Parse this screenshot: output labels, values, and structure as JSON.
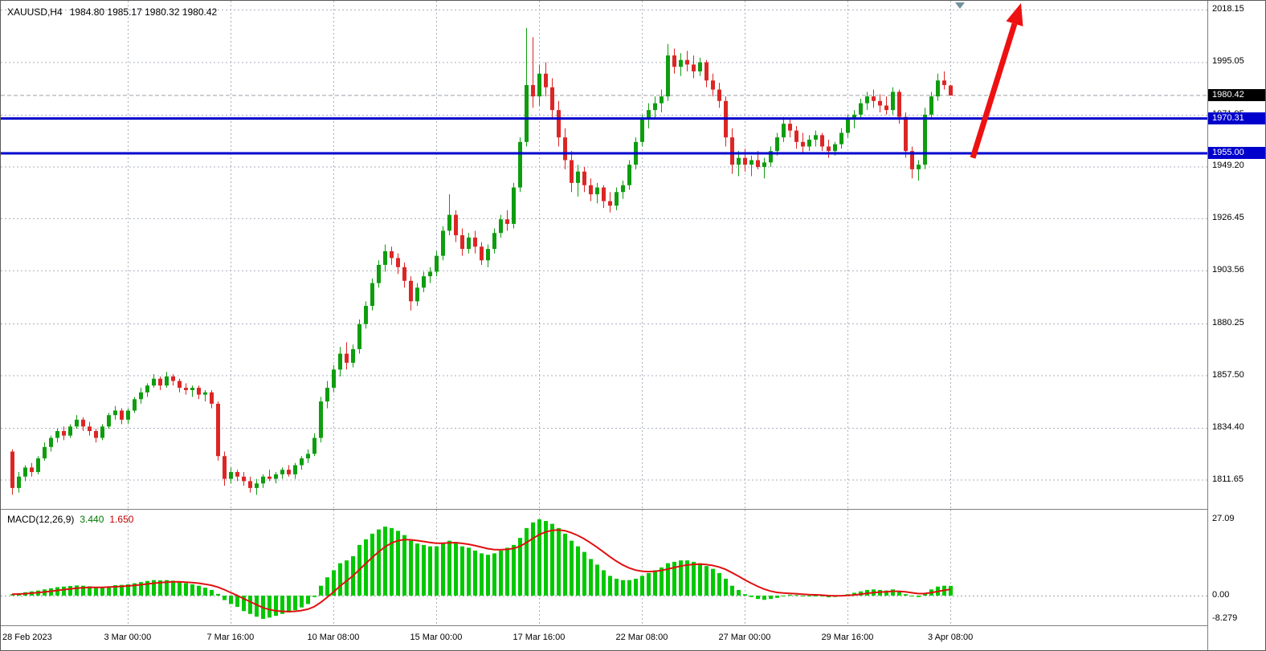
{
  "window": {
    "title": {
      "symbol": "XAUUSD,H4",
      "ohlc": "1984.80 1985.17 1980.32 1980.42"
    }
  },
  "colors": {
    "background": "#ffffff",
    "grid": "#a9afbc",
    "bull": "#0f9d0f",
    "bear": "#dc2626",
    "bid_line": "#9aa0a8",
    "level_line": "#0000cc",
    "current_price_bg": "#000000",
    "level_label_bg": "#0000cc",
    "macd_histogram": "#00c800",
    "macd_signal": "#e01010",
    "arrow": "#ee1111",
    "shift_marker": "#72929e",
    "axis_text": "#000000"
  },
  "chart_data": {
    "type": "candlestick",
    "symbol": "XAUUSD",
    "timeframe": "H4",
    "current_ohlc": {
      "open": "1984.80",
      "high": "1985.17",
      "low": "1980.32",
      "close": "1980.42"
    },
    "x_axis": {
      "labels": [
        {
          "index": 0,
          "label": "28 Feb 2023"
        },
        {
          "index": 18,
          "label": "3 Mar 00:00"
        },
        {
          "index": 34,
          "label": "7 Mar 16:00"
        },
        {
          "index": 50,
          "label": "10 Mar 08:00"
        },
        {
          "index": 66,
          "label": "15 Mar 00:00"
        },
        {
          "index": 82,
          "label": "17 Mar 16:00"
        },
        {
          "index": 98,
          "label": "22 Mar 08:00"
        },
        {
          "index": 114,
          "label": "27 Mar 00:00"
        },
        {
          "index": 130,
          "label": "29 Mar 16:00"
        },
        {
          "index": 146,
          "label": "3 Apr 08:00"
        }
      ]
    },
    "y_axis": {
      "ylim": [
        1798.8,
        2022.0
      ],
      "gridline_prices": [
        2018.15,
        1995.05,
        1971.95,
        1949.2,
        1926.45,
        1903.56,
        1880.25,
        1857.5,
        1834.4,
        1811.65
      ]
    },
    "price_markers": {
      "current": {
        "price": 1980.42,
        "label": "1980.42"
      },
      "levels": [
        {
          "price": 1970.31,
          "label": "1970.31"
        },
        {
          "price": 1955.0,
          "label": "1955.00"
        }
      ]
    },
    "candles": [
      [
        1824,
        1825,
        1805,
        1808
      ],
      [
        1808,
        1815,
        1806,
        1813
      ],
      [
        1813,
        1818,
        1811,
        1817
      ],
      [
        1817,
        1819,
        1813,
        1815
      ],
      [
        1815,
        1822,
        1814,
        1821
      ],
      [
        1821,
        1828,
        1820,
        1826
      ],
      [
        1826,
        1831,
        1824,
        1830
      ],
      [
        1830,
        1834,
        1828,
        1833
      ],
      [
        1833,
        1835,
        1829,
        1831
      ],
      [
        1831,
        1836,
        1830,
        1835
      ],
      [
        1835,
        1840,
        1834,
        1838
      ],
      [
        1838,
        1839,
        1833,
        1835
      ],
      [
        1835,
        1837,
        1831,
        1833
      ],
      [
        1833,
        1834,
        1828,
        1830
      ],
      [
        1830,
        1836,
        1829,
        1835
      ],
      [
        1835,
        1841,
        1834,
        1840
      ],
      [
        1840,
        1844,
        1838,
        1842
      ],
      [
        1842,
        1843,
        1836,
        1838
      ],
      [
        1838,
        1843,
        1836,
        1842
      ],
      [
        1842,
        1848,
        1841,
        1847
      ],
      [
        1847,
        1852,
        1845,
        1850
      ],
      [
        1850,
        1854,
        1848,
        1853
      ],
      [
        1853,
        1858,
        1852,
        1856
      ],
      [
        1856,
        1857,
        1851,
        1853
      ],
      [
        1853,
        1859,
        1852,
        1857
      ],
      [
        1857,
        1858,
        1853,
        1855
      ],
      [
        1855,
        1856,
        1850,
        1852
      ],
      [
        1852,
        1854,
        1849,
        1851
      ],
      [
        1851,
        1853,
        1848,
        1852
      ],
      [
        1852,
        1853,
        1847,
        1849
      ],
      [
        1849,
        1851,
        1846,
        1850
      ],
      [
        1850,
        1851,
        1843,
        1845
      ],
      [
        1845,
        1846,
        1820,
        1822
      ],
      [
        1822,
        1824,
        1809,
        1812
      ],
      [
        1812,
        1817,
        1810,
        1815
      ],
      [
        1815,
        1816,
        1811,
        1813
      ],
      [
        1813,
        1815,
        1809,
        1811
      ],
      [
        1811,
        1813,
        1806,
        1808
      ],
      [
        1808,
        1812,
        1805,
        1810
      ],
      [
        1810,
        1814,
        1808,
        1813
      ],
      [
        1813,
        1816,
        1811,
        1812
      ],
      [
        1812,
        1815,
        1810,
        1814
      ],
      [
        1814,
        1817,
        1812,
        1816
      ],
      [
        1816,
        1818,
        1813,
        1814
      ],
      [
        1814,
        1819,
        1812,
        1818
      ],
      [
        1818,
        1822,
        1816,
        1821
      ],
      [
        1821,
        1825,
        1819,
        1823
      ],
      [
        1823,
        1832,
        1822,
        1830
      ],
      [
        1830,
        1848,
        1828,
        1846
      ],
      [
        1846,
        1855,
        1843,
        1852
      ],
      [
        1852,
        1862,
        1850,
        1860
      ],
      [
        1860,
        1870,
        1857,
        1867
      ],
      [
        1867,
        1872,
        1860,
        1863
      ],
      [
        1863,
        1871,
        1861,
        1869
      ],
      [
        1869,
        1882,
        1867,
        1880
      ],
      [
        1880,
        1890,
        1878,
        1888
      ],
      [
        1888,
        1900,
        1886,
        1898
      ],
      [
        1898,
        1908,
        1896,
        1906
      ],
      [
        1906,
        1915,
        1903,
        1912
      ],
      [
        1912,
        1914,
        1906,
        1909
      ],
      [
        1909,
        1911,
        1902,
        1905
      ],
      [
        1905,
        1907,
        1896,
        1899
      ],
      [
        1899,
        1901,
        1886,
        1890
      ],
      [
        1890,
        1898,
        1888,
        1896
      ],
      [
        1896,
        1903,
        1894,
        1901
      ],
      [
        1901,
        1905,
        1898,
        1903
      ],
      [
        1903,
        1912,
        1901,
        1910
      ],
      [
        1910,
        1923,
        1908,
        1921
      ],
      [
        1921,
        1937,
        1919,
        1928
      ],
      [
        1928,
        1930,
        1916,
        1919
      ],
      [
        1919,
        1922,
        1910,
        1913
      ],
      [
        1913,
        1920,
        1911,
        1918
      ],
      [
        1918,
        1921,
        1911,
        1914
      ],
      [
        1914,
        1916,
        1906,
        1908
      ],
      [
        1908,
        1915,
        1905,
        1913
      ],
      [
        1913,
        1922,
        1911,
        1920
      ],
      [
        1920,
        1928,
        1918,
        1926
      ],
      [
        1926,
        1930,
        1921,
        1924
      ],
      [
        1924,
        1942,
        1922,
        1940
      ],
      [
        1940,
        1962,
        1938,
        1960
      ],
      [
        1960,
        2010,
        1958,
        1985
      ],
      [
        1985,
        2006,
        1975,
        1980
      ],
      [
        1980,
        1994,
        1976,
        1990
      ],
      [
        1990,
        1995,
        1980,
        1984
      ],
      [
        1984,
        1988,
        1970,
        1974
      ],
      [
        1974,
        1978,
        1958,
        1962
      ],
      [
        1962,
        1966,
        1948,
        1952
      ],
      [
        1952,
        1956,
        1938,
        1942
      ],
      [
        1942,
        1950,
        1936,
        1947
      ],
      [
        1947,
        1949,
        1938,
        1941
      ],
      [
        1941,
        1944,
        1934,
        1937
      ],
      [
        1937,
        1942,
        1933,
        1940
      ],
      [
        1940,
        1941,
        1931,
        1934
      ],
      [
        1934,
        1938,
        1929,
        1932
      ],
      [
        1932,
        1940,
        1930,
        1938
      ],
      [
        1938,
        1943,
        1935,
        1941
      ],
      [
        1941,
        1952,
        1939,
        1950
      ],
      [
        1950,
        1962,
        1948,
        1960
      ],
      [
        1960,
        1972,
        1958,
        1970
      ],
      [
        1970,
        1977,
        1966,
        1974
      ],
      [
        1974,
        1980,
        1970,
        1977
      ],
      [
        1977,
        1983,
        1973,
        1980
      ],
      [
        1980,
        2003,
        1978,
        1998
      ],
      [
        1998,
        2001,
        1990,
        1993
      ],
      [
        1993,
        1999,
        1989,
        1996
      ],
      [
        1996,
        2000,
        1991,
        1994
      ],
      [
        1994,
        1998,
        1988,
        1991
      ],
      [
        1991,
        1997,
        1989,
        1995
      ],
      [
        1995,
        1996,
        1984,
        1987
      ],
      [
        1987,
        1990,
        1980,
        1983
      ],
      [
        1983,
        1986,
        1975,
        1978
      ],
      [
        1978,
        1980,
        1958,
        1962
      ],
      [
        1962,
        1966,
        1946,
        1950
      ],
      [
        1950,
        1956,
        1945,
        1953
      ],
      [
        1953,
        1957,
        1947,
        1950
      ],
      [
        1950,
        1954,
        1945,
        1952
      ],
      [
        1952,
        1956,
        1948,
        1949
      ],
      [
        1949,
        1953,
        1944,
        1951
      ],
      [
        1951,
        1958,
        1949,
        1956
      ],
      [
        1956,
        1964,
        1954,
        1962
      ],
      [
        1962,
        1971,
        1960,
        1968
      ],
      [
        1968,
        1970,
        1962,
        1965
      ],
      [
        1965,
        1967,
        1957,
        1960
      ],
      [
        1960,
        1964,
        1955,
        1958
      ],
      [
        1958,
        1963,
        1956,
        1961
      ],
      [
        1961,
        1965,
        1958,
        1963
      ],
      [
        1963,
        1964,
        1956,
        1958
      ],
      [
        1958,
        1961,
        1953,
        1956
      ],
      [
        1956,
        1960,
        1954,
        1959
      ],
      [
        1959,
        1966,
        1957,
        1964
      ],
      [
        1964,
        1972,
        1962,
        1970
      ],
      [
        1970,
        1974,
        1966,
        1972
      ],
      [
        1972,
        1979,
        1970,
        1977
      ],
      [
        1977,
        1982,
        1974,
        1980
      ],
      [
        1980,
        1983,
        1975,
        1978
      ],
      [
        1978,
        1981,
        1973,
        1976
      ],
      [
        1976,
        1980,
        1972,
        1974
      ],
      [
        1974,
        1984,
        1972,
        1982
      ],
      [
        1982,
        1983,
        1968,
        1971
      ],
      [
        1971,
        1973,
        1953,
        1956
      ],
      [
        1956,
        1958,
        1944,
        1948
      ],
      [
        1948,
        1952,
        1943,
        1950
      ],
      [
        1950,
        1975,
        1948,
        1972
      ],
      [
        1972,
        1982,
        1970,
        1980
      ],
      [
        1980,
        1990,
        1978,
        1987
      ],
      [
        1987,
        1991,
        1983,
        1985
      ],
      [
        1984.8,
        1985.17,
        1980.32,
        1980.42
      ]
    ],
    "annotations": {
      "trend_arrow": {
        "from": {
          "index": 149.5,
          "price": 1953
        },
        "to": {
          "index": 157,
          "price": 2021
        }
      },
      "shift_marker_index": 147.5
    },
    "macd": {
      "name": "MACD(12,26,9)",
      "main_value": "3.440",
      "signal_value": "1.650",
      "signal_period": 9,
      "ylim": [
        -8.279,
        27.09
      ],
      "axis_labels": [
        "27.09",
        "0.00",
        "-8.279"
      ],
      "values": [
        0.5,
        0.8,
        1.2,
        1.5,
        1.8,
        2.2,
        2.6,
        3.0,
        3.2,
        3.4,
        3.6,
        3.5,
        3.3,
        3.0,
        3.0,
        3.3,
        3.7,
        3.8,
        4.0,
        4.4,
        4.8,
        5.2,
        5.5,
        5.4,
        5.5,
        5.3,
        4.9,
        4.4,
        4.0,
        3.5,
        2.8,
        2.0,
        0.6,
        -1.6,
        -3.0,
        -4.0,
        -5.5,
        -6.5,
        -7.5,
        -8.28,
        -7.8,
        -7.2,
        -6.5,
        -6.0,
        -5.2,
        -4.2,
        -3.0,
        -0.5,
        3.5,
        6.5,
        9.0,
        11.5,
        12.5,
        14.0,
        18.0,
        20.0,
        22.0,
        23.5,
        24.5,
        24.0,
        23.0,
        21.5,
        19.5,
        18.5,
        18.0,
        17.5,
        17.5,
        18.5,
        19.5,
        19.0,
        17.5,
        17.0,
        16.0,
        15.0,
        14.5,
        15.0,
        16.0,
        17.0,
        18.0,
        20.5,
        24.0,
        26.0,
        27.09,
        26.5,
        25.5,
        24.0,
        22.0,
        19.5,
        17.5,
        15.5,
        13.0,
        11.0,
        9.0,
        7.0,
        6.0,
        5.5,
        5.5,
        6.0,
        7.0,
        8.0,
        9.0,
        10.0,
        11.5,
        12.0,
        12.5,
        12.5,
        12.0,
        11.5,
        10.5,
        9.5,
        8.0,
        6.0,
        3.5,
        2.0,
        0.5,
        -0.5,
        -1.2,
        -1.5,
        -1.2,
        -0.8,
        0.0,
        0.3,
        0.2,
        -0.2,
        -0.3,
        0.0,
        -0.3,
        -0.6,
        -0.5,
        0.0,
        0.5,
        1.0,
        1.5,
        2.0,
        2.2,
        2.0,
        1.8,
        2.2,
        1.5,
        0.5,
        -0.2,
        -0.5,
        0.8,
        2.2,
        3.2,
        3.5,
        3.44
      ]
    }
  }
}
